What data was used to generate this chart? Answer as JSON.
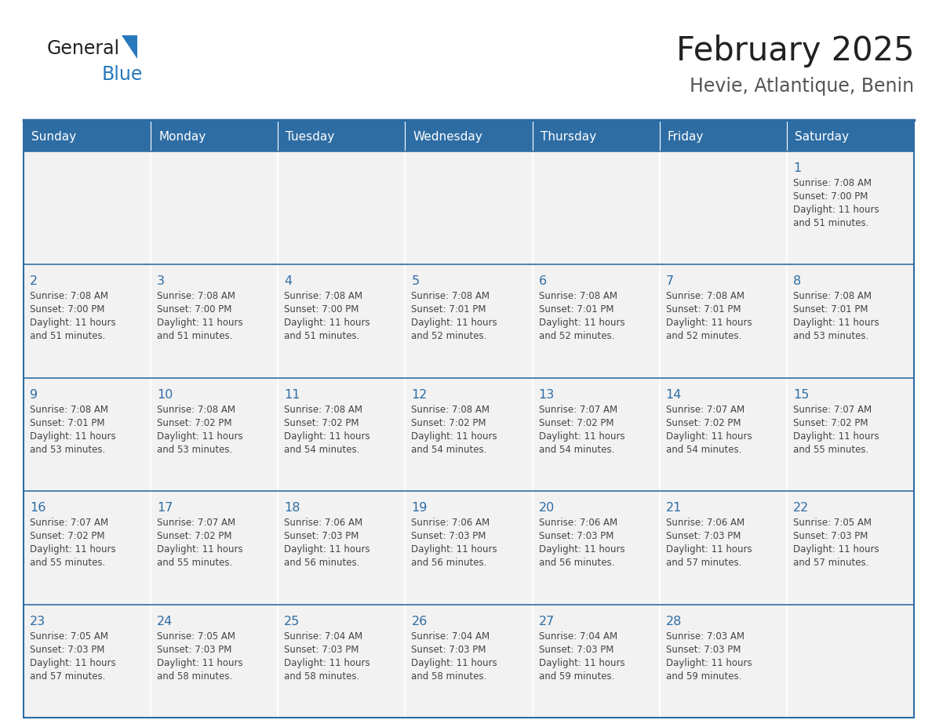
{
  "title": "February 2025",
  "subtitle": "Hevie, Atlantique, Benin",
  "header_color": "#2E6DA4",
  "header_text_color": "#FFFFFF",
  "header_days": [
    "Sunday",
    "Monday",
    "Tuesday",
    "Wednesday",
    "Thursday",
    "Friday",
    "Saturday"
  ],
  "cell_bg_color": "#F2F2F2",
  "week_divider_color": "#2E6DA4",
  "day_number_color": "#2E6DA4",
  "info_text_color": "#444444",
  "title_color": "#222222",
  "subtitle_color": "#555555",
  "logo_general_color": "#222222",
  "logo_blue_color": "#2878BE",
  "outer_border_color": "#2E6DA4",
  "weeks": [
    [
      null,
      null,
      null,
      null,
      null,
      null,
      1
    ],
    [
      2,
      3,
      4,
      5,
      6,
      7,
      8
    ],
    [
      9,
      10,
      11,
      12,
      13,
      14,
      15
    ],
    [
      16,
      17,
      18,
      19,
      20,
      21,
      22
    ],
    [
      23,
      24,
      25,
      26,
      27,
      28,
      null
    ]
  ],
  "day_data": {
    "1": {
      "sunrise": "7:08 AM",
      "sunset": "7:00 PM",
      "daylight": "11 hours and 51 minutes."
    },
    "2": {
      "sunrise": "7:08 AM",
      "sunset": "7:00 PM",
      "daylight": "11 hours and 51 minutes."
    },
    "3": {
      "sunrise": "7:08 AM",
      "sunset": "7:00 PM",
      "daylight": "11 hours and 51 minutes."
    },
    "4": {
      "sunrise": "7:08 AM",
      "sunset": "7:00 PM",
      "daylight": "11 hours and 51 minutes."
    },
    "5": {
      "sunrise": "7:08 AM",
      "sunset": "7:01 PM",
      "daylight": "11 hours and 52 minutes."
    },
    "6": {
      "sunrise": "7:08 AM",
      "sunset": "7:01 PM",
      "daylight": "11 hours and 52 minutes."
    },
    "7": {
      "sunrise": "7:08 AM",
      "sunset": "7:01 PM",
      "daylight": "11 hours and 52 minutes."
    },
    "8": {
      "sunrise": "7:08 AM",
      "sunset": "7:01 PM",
      "daylight": "11 hours and 53 minutes."
    },
    "9": {
      "sunrise": "7:08 AM",
      "sunset": "7:01 PM",
      "daylight": "11 hours and 53 minutes."
    },
    "10": {
      "sunrise": "7:08 AM",
      "sunset": "7:02 PM",
      "daylight": "11 hours and 53 minutes."
    },
    "11": {
      "sunrise": "7:08 AM",
      "sunset": "7:02 PM",
      "daylight": "11 hours and 54 minutes."
    },
    "12": {
      "sunrise": "7:08 AM",
      "sunset": "7:02 PM",
      "daylight": "11 hours and 54 minutes."
    },
    "13": {
      "sunrise": "7:07 AM",
      "sunset": "7:02 PM",
      "daylight": "11 hours and 54 minutes."
    },
    "14": {
      "sunrise": "7:07 AM",
      "sunset": "7:02 PM",
      "daylight": "11 hours and 54 minutes."
    },
    "15": {
      "sunrise": "7:07 AM",
      "sunset": "7:02 PM",
      "daylight": "11 hours and 55 minutes."
    },
    "16": {
      "sunrise": "7:07 AM",
      "sunset": "7:02 PM",
      "daylight": "11 hours and 55 minutes."
    },
    "17": {
      "sunrise": "7:07 AM",
      "sunset": "7:02 PM",
      "daylight": "11 hours and 55 minutes."
    },
    "18": {
      "sunrise": "7:06 AM",
      "sunset": "7:03 PM",
      "daylight": "11 hours and 56 minutes."
    },
    "19": {
      "sunrise": "7:06 AM",
      "sunset": "7:03 PM",
      "daylight": "11 hours and 56 minutes."
    },
    "20": {
      "sunrise": "7:06 AM",
      "sunset": "7:03 PM",
      "daylight": "11 hours and 56 minutes."
    },
    "21": {
      "sunrise": "7:06 AM",
      "sunset": "7:03 PM",
      "daylight": "11 hours and 57 minutes."
    },
    "22": {
      "sunrise": "7:05 AM",
      "sunset": "7:03 PM",
      "daylight": "11 hours and 57 minutes."
    },
    "23": {
      "sunrise": "7:05 AM",
      "sunset": "7:03 PM",
      "daylight": "11 hours and 57 minutes."
    },
    "24": {
      "sunrise": "7:05 AM",
      "sunset": "7:03 PM",
      "daylight": "11 hours and 58 minutes."
    },
    "25": {
      "sunrise": "7:04 AM",
      "sunset": "7:03 PM",
      "daylight": "11 hours and 58 minutes."
    },
    "26": {
      "sunrise": "7:04 AM",
      "sunset": "7:03 PM",
      "daylight": "11 hours and 58 minutes."
    },
    "27": {
      "sunrise": "7:04 AM",
      "sunset": "7:03 PM",
      "daylight": "11 hours and 59 minutes."
    },
    "28": {
      "sunrise": "7:03 AM",
      "sunset": "7:03 PM",
      "daylight": "11 hours and 59 minutes."
    }
  }
}
